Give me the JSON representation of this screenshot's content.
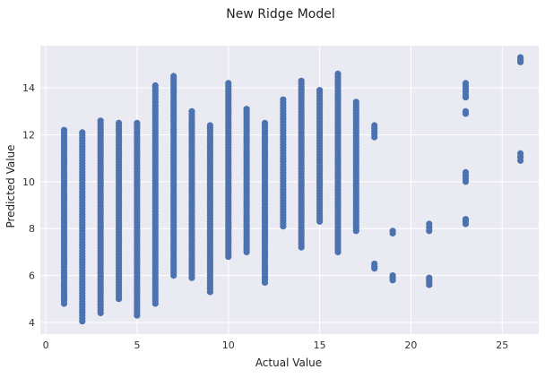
{
  "chart_data": {
    "type": "scatter",
    "title": "New Ridge Model",
    "xlabel": "Actual Value",
    "ylabel": "Predicted Value",
    "xlim": [
      -0.3,
      27.0
    ],
    "ylim": [
      3.5,
      15.8
    ],
    "xticks": [
      0,
      5,
      10,
      15,
      20,
      25
    ],
    "yticks": [
      4,
      6,
      8,
      10,
      12,
      14
    ],
    "grid": true,
    "colors": {
      "background": "#eaeaf2",
      "grid": "#ffffff",
      "points": "#4c72b0"
    },
    "series": [
      {
        "columns": [
          {
            "x": 1,
            "ymin": 4.8,
            "ymax": 12.2
          },
          {
            "x": 2,
            "ymin": 4.05,
            "ymax": 12.1
          },
          {
            "x": 3,
            "ymin": 4.4,
            "ymax": 12.6
          },
          {
            "x": 4,
            "ymin": 5.0,
            "ymax": 12.5
          },
          {
            "x": 5,
            "ymin": 4.3,
            "ymax": 12.5
          },
          {
            "x": 6,
            "ymin": 4.8,
            "ymax": 14.1
          },
          {
            "x": 7,
            "ymin": 6.0,
            "ymax": 14.5
          },
          {
            "x": 8,
            "ymin": 5.9,
            "ymax": 13.0
          },
          {
            "x": 9,
            "ymin": 5.3,
            "ymax": 12.4
          },
          {
            "x": 10,
            "ymin": 6.8,
            "ymax": 14.2
          },
          {
            "x": 11,
            "ymin": 7.0,
            "ymax": 13.1
          },
          {
            "x": 12,
            "ymin": 5.7,
            "ymax": 12.5
          },
          {
            "x": 13,
            "ymin": 8.1,
            "ymax": 13.5
          },
          {
            "x": 14,
            "ymin": 7.2,
            "ymax": 14.3
          },
          {
            "x": 15,
            "ymin": 8.3,
            "ymax": 13.9
          },
          {
            "x": 16,
            "ymin": 7.0,
            "ymax": 14.6
          },
          {
            "x": 17,
            "ymin": 7.9,
            "ymax": 13.4
          },
          {
            "x": 18,
            "ymin": 11.9,
            "ymax": 12.4
          },
          {
            "x": 18,
            "ymin": 6.3,
            "ymax": 6.5
          },
          {
            "x": 19,
            "ymin": 7.8,
            "ymax": 7.9
          },
          {
            "x": 19,
            "ymin": 5.8,
            "ymax": 6.0
          },
          {
            "x": 21,
            "ymin": 7.9,
            "ymax": 8.2
          },
          {
            "x": 21,
            "ymin": 5.6,
            "ymax": 5.9
          },
          {
            "x": 23,
            "ymin": 13.6,
            "ymax": 14.2
          },
          {
            "x": 23,
            "ymin": 12.9,
            "ymax": 13.0
          },
          {
            "x": 23,
            "ymin": 10.0,
            "ymax": 10.4
          },
          {
            "x": 23,
            "ymin": 8.2,
            "ymax": 8.4
          },
          {
            "x": 26,
            "ymin": 15.1,
            "ymax": 15.3
          },
          {
            "x": 26,
            "ymin": 10.9,
            "ymax": 11.2
          }
        ]
      }
    ]
  }
}
